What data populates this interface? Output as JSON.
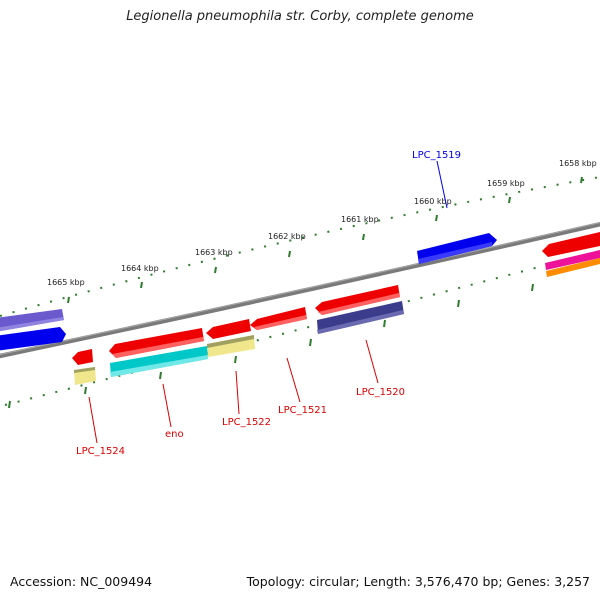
{
  "title": "Legionella pneumophila str. Corby, complete genome",
  "footer": {
    "accession": "Accession: NC_009494",
    "summary": "Topology: circular; Length: 3,576,470 bp; Genes: 3,257"
  },
  "tick_labels": [
    "1665 kbp",
    "1664 kbp",
    "1663 kbp",
    "1662 kbp",
    "1661 kbp",
    "1660 kbp",
    "1659 kbp",
    "1658 kbp"
  ],
  "gene_labels": {
    "top": [
      {
        "text": "LPC_1519",
        "color": "#0000ee"
      }
    ],
    "bottom": [
      {
        "text": "LPC_1524",
        "color": "#dd0000"
      },
      {
        "text": "eno",
        "color": "#dd0000"
      },
      {
        "text": "LPC_1522",
        "color": "#dd0000"
      },
      {
        "text": "LPC_1521",
        "color": "#dd0000"
      },
      {
        "text": "LPC_1520",
        "color": "#dd0000"
      }
    ]
  },
  "colors": {
    "backbone": "#7a7a7a",
    "tick_ring": "#2e7d2e",
    "cds_forward": "#ee0000",
    "cds_reverse": "#0000ee",
    "cog_lavender": "#6a5acd",
    "cog_navy": "#3c3c8c",
    "cog_cyan": "#00c8c8",
    "cog_khaki": "#f0e68c",
    "cog_magenta": "#ee1199",
    "cog_orange": "#ff8c00"
  }
}
